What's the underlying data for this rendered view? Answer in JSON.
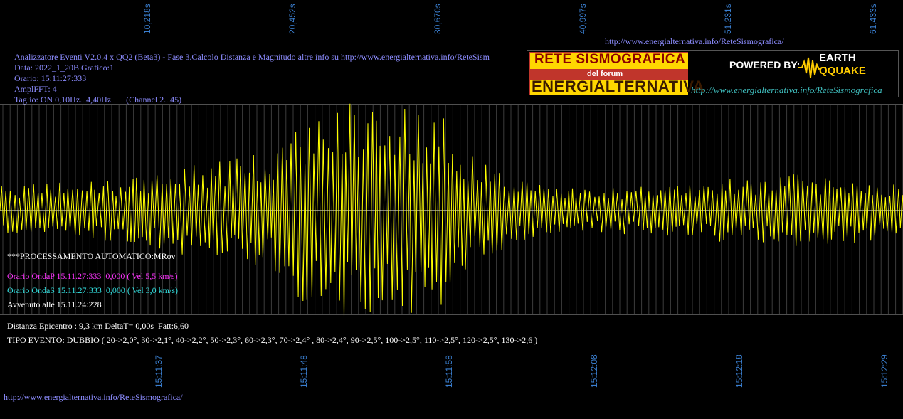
{
  "chart_data": {
    "type": "line",
    "title": "",
    "top_ticks": [
      "10,218s",
      "20,452s",
      "30,670s",
      "40,997s",
      "51,231s",
      "61,433s"
    ],
    "bottom_ticks": [
      "15:11:37",
      "15:11:48",
      "15:11:58",
      "15:12:08",
      "15:12:18",
      "15:12:29"
    ],
    "series_color": "#ffff00",
    "amplitude_envelope": [
      {
        "t": 0,
        "a": 0.35
      },
      {
        "t": 0.15,
        "a": 0.45
      },
      {
        "t": 0.22,
        "a": 0.65
      },
      {
        "t": 0.3,
        "a": 0.8
      },
      {
        "t": 0.34,
        "a": 1.3
      },
      {
        "t": 0.4,
        "a": 1.6
      },
      {
        "t": 0.45,
        "a": 1.45
      },
      {
        "t": 0.49,
        "a": 1.3
      },
      {
        "t": 0.52,
        "a": 0.8
      },
      {
        "t": 0.57,
        "a": 0.45
      },
      {
        "t": 0.65,
        "a": 0.3
      },
      {
        "t": 0.74,
        "a": 0.35
      },
      {
        "t": 0.82,
        "a": 0.45
      },
      {
        "t": 0.88,
        "a": 0.5
      },
      {
        "t": 0.95,
        "a": 0.45
      },
      {
        "t": 1.0,
        "a": 0.35
      }
    ]
  },
  "header": {
    "url_top": "http://www.energialternativa.info/ReteSismografica/",
    "info_line1": "Analizzatore Eventi V2.0.4 x QQ2 (Beta3) - Fase 3.Calcolo Distanza e Magnitudo altre info su http://www.energialternativa.info/ReteSism",
    "info_line2": "Data: 2022_1_20B Grafico:1",
    "info_line3": "Orario: 15:11:27:333",
    "info_line4": "AmplFFT: 4",
    "info_line5": "Taglio: ON 0,10Hz...4,40Hz       (Channel 2...45)"
  },
  "logo": {
    "title1": "RETE SISMOGRAFICA",
    "title2": "del forum",
    "title3": "ENERGIALTERNATIVA",
    "powered": "POWERED BY:",
    "earth": "EARTH",
    "quake": "QQUAKE",
    "url": "http://www.energialternativa.info/ReteSismografica"
  },
  "analysis": {
    "processing": "***PROCESSAMENTO AUTOMATICO:MRov",
    "onda_p": "Orario OndaP 15.11.27:333  0,000 ( Vel 5,5 km/s)",
    "onda_s": "Orario OndaS 15.11.27:333  0,000 ( Vel 3,0 km/s)",
    "avvenuto": "Avvenuto alle 15.11.24:228",
    "distanza": "Distanza Epicentro : 9,3 km DeltaT= 0,00s  Fatt:6,60",
    "tipo": "TIPO EVENTO: DUBBIO ( 20->2,0°, 30->2,1°, 40->2,2°, 50->2,3°, 60->2,3°, 70->2,4° , 80->2,4°, 90->2,5°, 100->2,5°, 110->2,5°, 120->2,5°, 130->2,6 )"
  },
  "footer": {
    "url_bottom": "http://www.energialternativa.info/ReteSismografica/"
  }
}
